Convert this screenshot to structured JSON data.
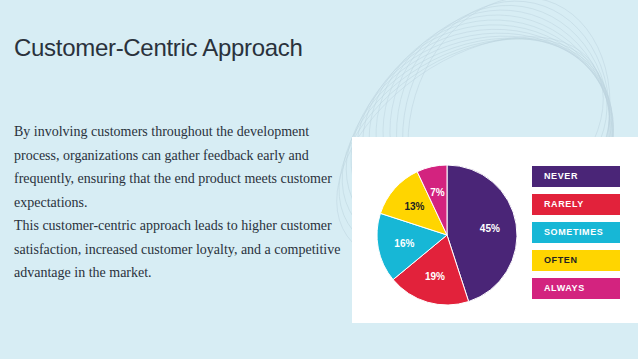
{
  "title": "Customer-Centric Approach",
  "paragraphs": [
    "By involving customers throughout the development process, organizations can gather feedback early and frequently, ensuring that the end product meets customer expectations.",
    "This customer-centric approach leads to higher customer satisfaction, increased customer loyalty, and a competitive advantage in the market."
  ],
  "chart_data": {
    "type": "pie",
    "categories": [
      "NEVER",
      "RARELY",
      "SOMETIMES",
      "OFTEN",
      "ALWAYS"
    ],
    "values": [
      45,
      19,
      16,
      13,
      7
    ],
    "value_labels": [
      "45%",
      "19%",
      "16%",
      "13%",
      "7%"
    ],
    "colors": [
      "#4a2577",
      "#e2223b",
      "#17b7d6",
      "#ffd500",
      "#d3237f"
    ],
    "data_labels": true,
    "legend": "right"
  }
}
